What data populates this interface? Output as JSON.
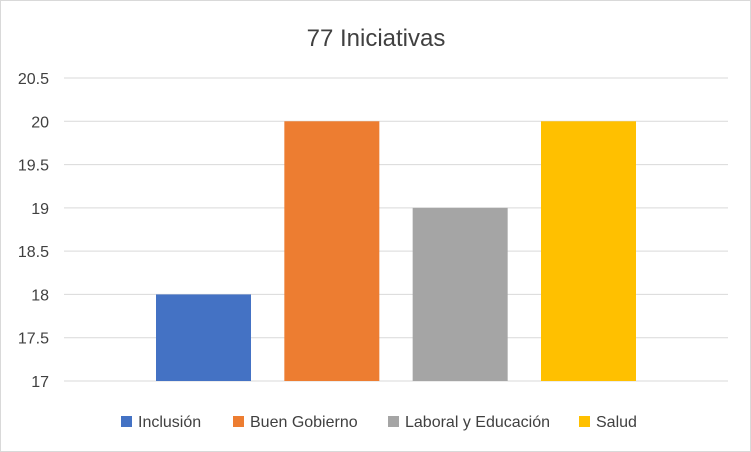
{
  "chart_data": {
    "type": "bar",
    "title": "77 Iniciativas",
    "xlabel": "",
    "ylabel": "",
    "ylim": [
      17,
      20.5
    ],
    "yticks": [
      17,
      17.5,
      18,
      18.5,
      19,
      19.5,
      20,
      20.5
    ],
    "ytick_labels": [
      "17",
      "17.5",
      "18",
      "18.5",
      "19",
      "19.5",
      "20",
      "20.5"
    ],
    "grid": true,
    "legend": "bottom",
    "series": [
      {
        "name": "Inclusión",
        "value": 18,
        "color": "#4472C4"
      },
      {
        "name": "Buen Gobierno",
        "value": 20,
        "color": "#ED7D31"
      },
      {
        "name": "Laboral y Educación",
        "value": 19,
        "color": "#A5A5A5"
      },
      {
        "name": "Salud",
        "value": 20,
        "color": "#FFC000"
      }
    ]
  }
}
